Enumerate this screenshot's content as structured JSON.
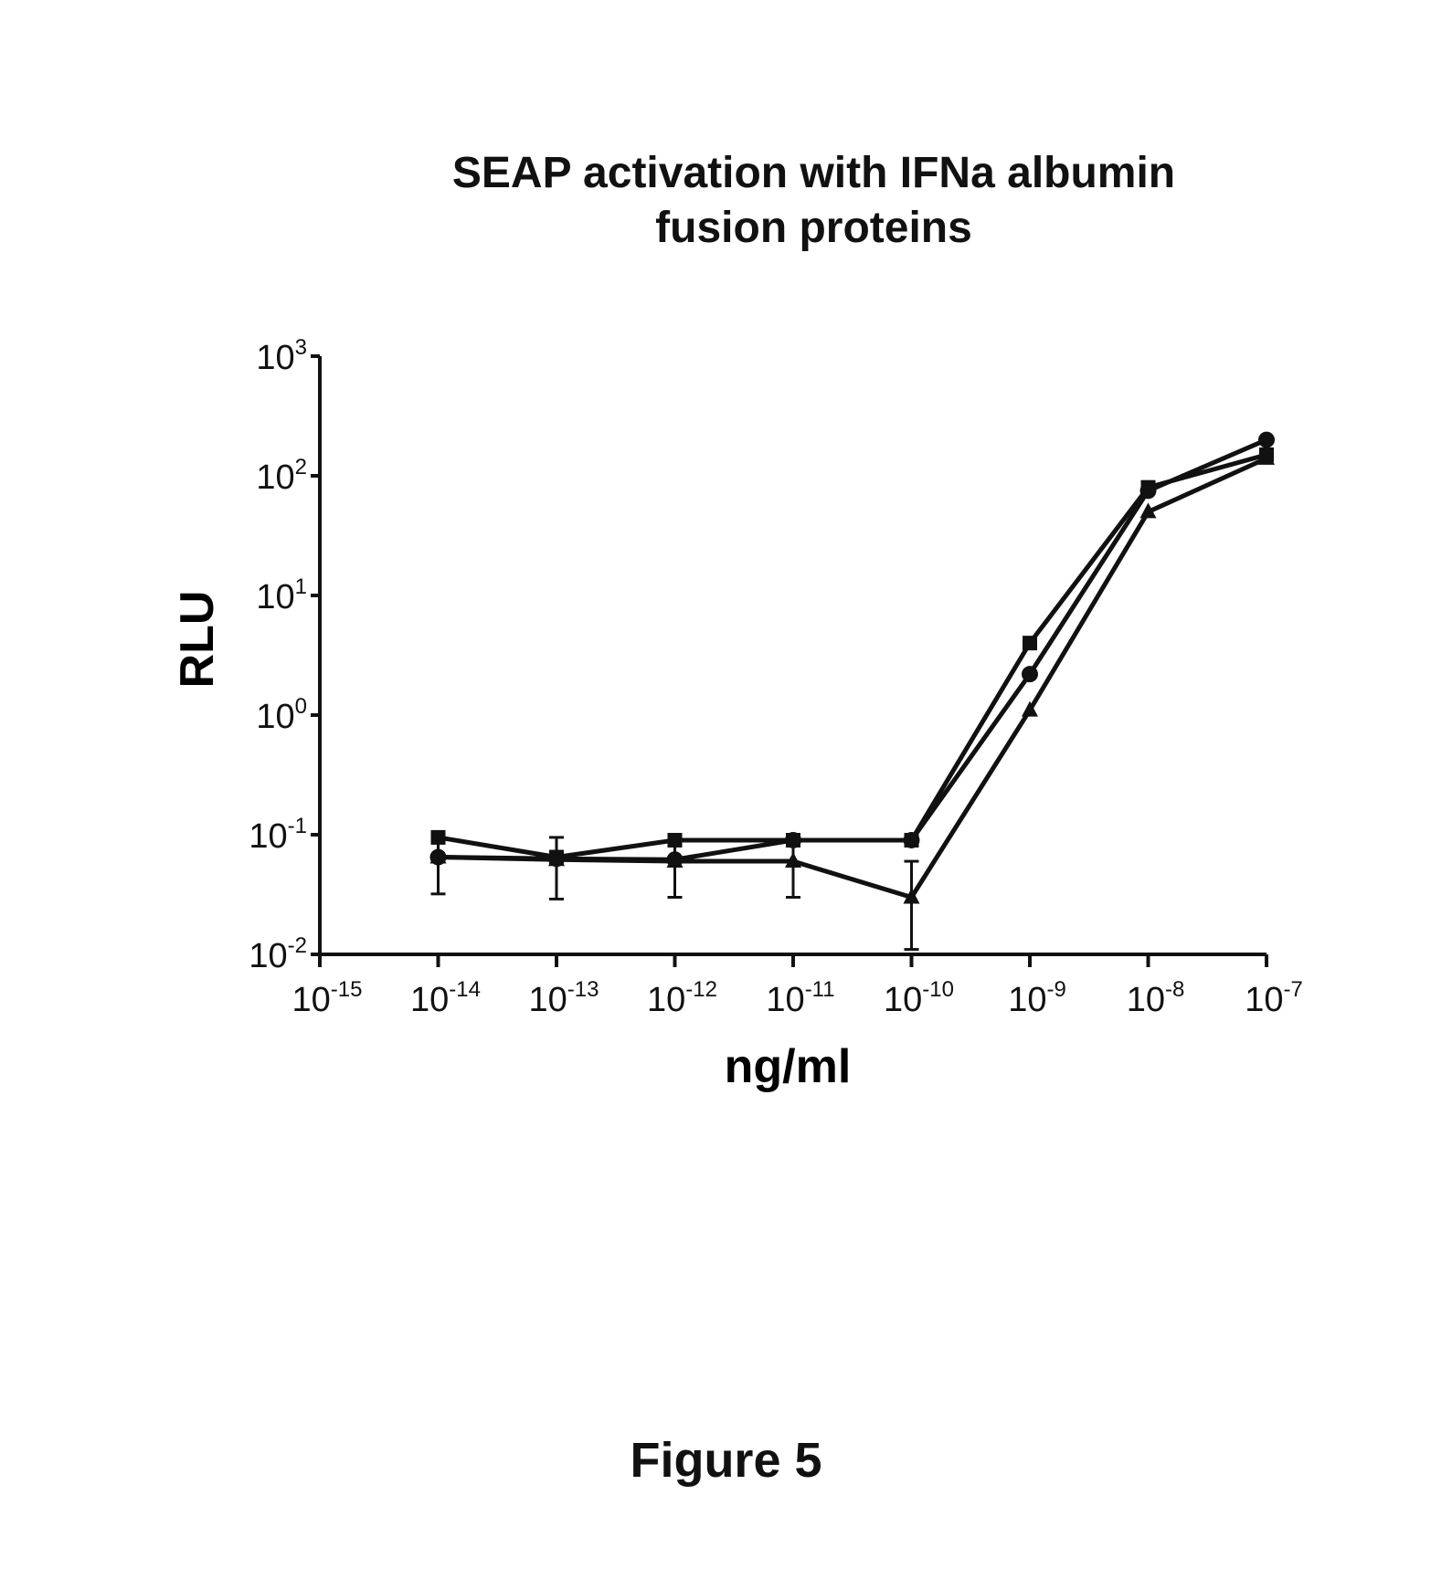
{
  "chart_data": {
    "type": "line",
    "title_lines": [
      "SEAP activation with IFNa albumin",
      "fusion proteins"
    ],
    "xlabel": "ng/ml",
    "ylabel": "RLU",
    "x_scale": "log",
    "y_scale": "log",
    "xlim": [
      1e-15,
      1e-07
    ],
    "ylim": [
      0.01,
      1000
    ],
    "x_ticks": [
      {
        "value": 1e-15,
        "base": "10",
        "exp": "-15"
      },
      {
        "value": 1e-14,
        "base": "10",
        "exp": "-14"
      },
      {
        "value": 1e-13,
        "base": "10",
        "exp": "-13"
      },
      {
        "value": 1e-12,
        "base": "10",
        "exp": "-12"
      },
      {
        "value": 1e-11,
        "base": "10",
        "exp": "-11"
      },
      {
        "value": 1e-10,
        "base": "10",
        "exp": "-10"
      },
      {
        "value": 1e-09,
        "base": "10",
        "exp": "-9"
      },
      {
        "value": 1e-08,
        "base": "10",
        "exp": "-8"
      },
      {
        "value": 1e-07,
        "base": "10",
        "exp": "-7"
      }
    ],
    "y_ticks": [
      {
        "value": 1000,
        "base": "10",
        "exp": "3"
      },
      {
        "value": 100,
        "base": "10",
        "exp": "2"
      },
      {
        "value": 10,
        "base": "10",
        "exp": "1"
      },
      {
        "value": 1,
        "base": "10",
        "exp": "0"
      },
      {
        "value": 0.1,
        "base": "10",
        "exp": "-1"
      },
      {
        "value": 0.01,
        "base": "10",
        "exp": "-2"
      }
    ],
    "grid": false,
    "legend": "none",
    "series": [
      {
        "marker": "square",
        "x": [
          1e-14,
          1e-13,
          1e-12,
          1e-11,
          1e-10,
          1e-09,
          1e-08,
          1e-07
        ],
        "y": [
          0.095,
          0.065,
          0.09,
          0.09,
          0.09,
          4.0,
          80,
          150
        ],
        "err": [
          0,
          0,
          0,
          0,
          0,
          0,
          0,
          0
        ]
      },
      {
        "marker": "circle",
        "x": [
          1e-14,
          1e-13,
          1e-12,
          1e-11,
          1e-10,
          1e-09,
          1e-08,
          1e-07
        ],
        "y": [
          0.065,
          0.063,
          0.062,
          0.09,
          0.09,
          2.2,
          75,
          200
        ],
        "err": [
          0,
          0,
          0,
          0,
          0,
          0,
          0,
          0
        ]
      },
      {
        "marker": "triangle",
        "x": [
          1e-14,
          1e-13,
          1e-12,
          1e-11,
          1e-10,
          1e-09,
          1e-08,
          1e-07
        ],
        "y": [
          0.065,
          0.062,
          0.06,
          0.06,
          0.03,
          1.1,
          50,
          140
        ],
        "err": [
          0.033,
          0.033,
          0.03,
          0.03,
          0.03,
          0,
          0,
          0
        ]
      }
    ]
  },
  "figure_label": "Figure 5"
}
